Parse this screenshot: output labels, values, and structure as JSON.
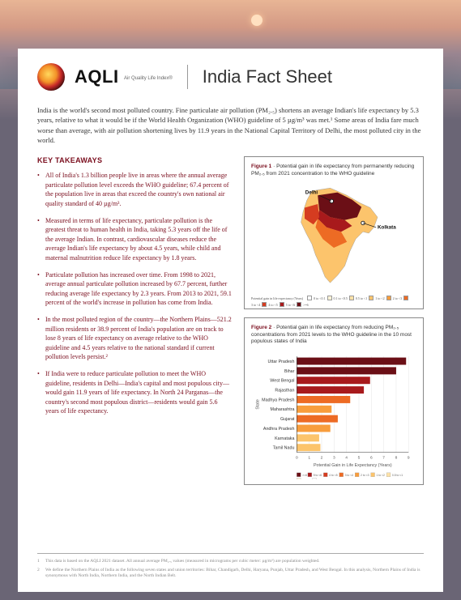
{
  "header": {
    "logo_main": "AQLI",
    "logo_sub": "Air Quality\nLife Index®",
    "title": "India Fact Sheet"
  },
  "intro": "India is the world's second most polluted country. Fine particulate air pollution (PM₂.₅) shortens an average Indian's life expectancy by 5.3 years, relative to what it would be if the World Health Organization (WHO) guideline of 5 µg/m³ was met.¹ Some areas of India fare much worse than average, with air pollution shortening lives by 11.9 years in the National Capital Territory of Delhi, the most polluted city in the world.",
  "key_takeaways_heading": "KEY TAKEAWAYS",
  "bullets": [
    "All of India's 1.3 billion people live in areas where the annual average particulate pollution level exceeds the WHO guideline; 67.4 percent of the population live in areas that exceed the country's own national air quality standard of 40 µg/m³.",
    "Measured in terms of life expectancy, particulate pollution is the greatest threat to human health in India, taking 5.3 years off the life of the average Indian. In contrast, cardiovascular diseases reduce the average Indian's life expectancy by about 4.5 years, while child and maternal malnutrition reduce life expectancy by 1.8 years.",
    "Particulate pollution has increased over time. From 1998 to 2021, average annual particulate pollution increased by 67.7 percent, further reducing average life expectancy by 2.3 years. From 2013 to 2021, 59.1 percent of the world's increase in pollution has come from India.",
    "In the most polluted region of the country—the Northern Plains—521.2 million residents or 38.9 percent of India's population are on track to lose 8 years of life expectancy on average relative to the WHO guideline and 4.5 years relative to the national standard if current pollution levels persist.²",
    "If India were to reduce particulate pollution to meet the WHO guideline, residents in Delhi—India's capital and most populous city—would gain 11.9 years of life expectancy. In North 24 Parganas—the country's second most populous district—residents would gain 5.6 years of life expectancy."
  ],
  "figure1": {
    "label": "Figure 1",
    "caption": "Potential gain in life expectancy from permanently reducing PM₂.₅ from 2021 concentration to the WHO guideline",
    "cities": {
      "delhi": "Delhi",
      "kolkata": "Kolkata"
    },
    "legend_label": "Potential gain in life expectancy (Years)",
    "legend_bins": [
      "0 to <0.1",
      "0.1 to <0.5",
      "0.5 to <1",
      "1 to <2",
      "2 to <3",
      "3 to <4",
      "4 to <5",
      "5 to <6",
      ">=6"
    ],
    "legend_colors": [
      "#ffffff",
      "#fef3d6",
      "#fde2a8",
      "#fcc46c",
      "#f89d3c",
      "#ed6b24",
      "#d53c20",
      "#a81a1c",
      "#6b0f16"
    ]
  },
  "figure2": {
    "label": "Figure 2",
    "caption": "Potential gain in life expectancy from reducing PM₂.₅ concentrations from 2021 levels to the WHO guideline in the 10 most populous states of India",
    "ylabel": "State",
    "xlabel": "Potential Gain in Life Expectancy (Years)",
    "xmax": 9,
    "xticks": [
      0,
      1,
      2,
      3,
      4,
      5,
      6,
      7,
      8,
      9
    ],
    "states": [
      "Uttar Pradesh",
      "Bihar",
      "West Bengal",
      "Rajasthan",
      "Madhya Pradesh",
      "Maharashtra",
      "Gujarat",
      "Andhra Pradesh",
      "Karnataka",
      "Tamil Nadu"
    ],
    "values": [
      8.8,
      8.0,
      5.9,
      5.4,
      4.3,
      2.8,
      3.3,
      2.7,
      1.8,
      1.9
    ],
    "colors": [
      "#6b0f16",
      "#6b0f16",
      "#a81a1c",
      "#a81a1c",
      "#ed6b24",
      "#f89d3c",
      "#ed6b24",
      "#f89d3c",
      "#fcc46c",
      "#fcc46c"
    ],
    "legend_bins": [
      ">=6",
      "5 to <6",
      "4 to <5",
      "3 to <4",
      "2 to <3",
      "1 to <2",
      "0.5 to <1",
      "0.1 to <0.5",
      "0 to <0.1"
    ],
    "legend_colors": [
      "#6b0f16",
      "#a81a1c",
      "#d53c20",
      "#ed6b24",
      "#f89d3c",
      "#fcc46c",
      "#fde2a8",
      "#fef3d6",
      "#ffffff"
    ]
  },
  "footnotes": [
    "This data is based on the AQLI 2021 dataset. All annual average PM₂.₅ values (measured in micrograms per cubic meter: µg/m³) are population weighted.",
    "We define the Northern Plains of India as the following seven states and union territories: Bihar, Chandigarh, Delhi, Haryana, Punjab, Uttar Pradesh, and West Bengal. In this analysis, Northern Plains of India is synonymous with North India, Northern India, and the North Indian Belt."
  ]
}
